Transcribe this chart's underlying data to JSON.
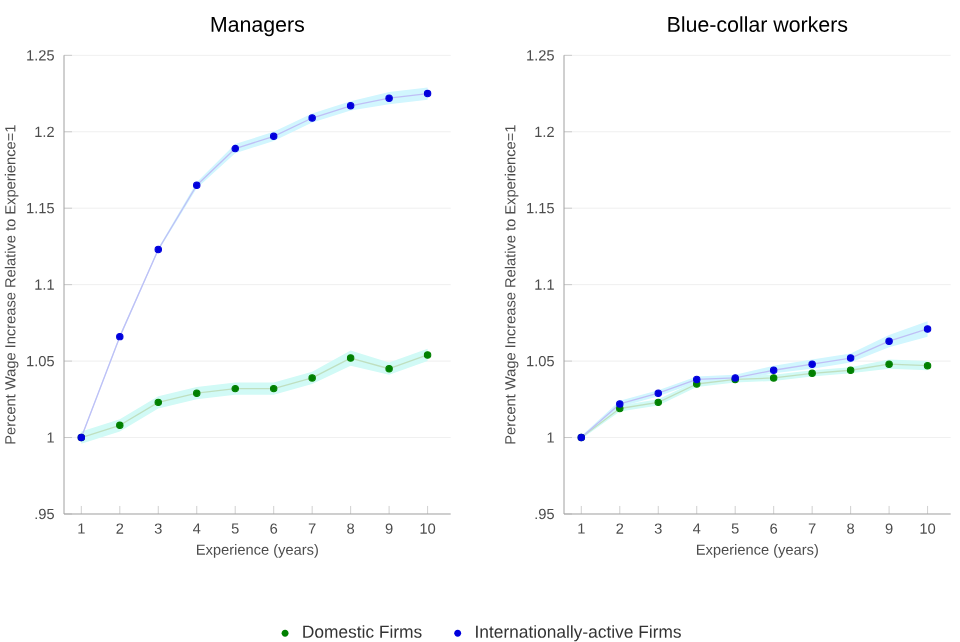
{
  "chart_data": [
    {
      "type": "line",
      "title": "Managers",
      "xlabel": "Experience (years)",
      "ylabel": "Percent Wage Increase Relative to Experience=1",
      "x": [
        1,
        2,
        3,
        4,
        5,
        6,
        7,
        8,
        9,
        10
      ],
      "series": [
        {
          "name": "Domestic Firms",
          "color": "#008000",
          "values": [
            1.0,
            1.008,
            1.023,
            1.029,
            1.032,
            1.032,
            1.039,
            1.052,
            1.045,
            1.054
          ],
          "lower": [
            0.996,
            1.004,
            1.019,
            1.025,
            1.028,
            1.028,
            1.035,
            1.047,
            1.041,
            1.05
          ],
          "upper": [
            1.004,
            1.012,
            1.027,
            1.033,
            1.036,
            1.036,
            1.043,
            1.057,
            1.049,
            1.058
          ]
        },
        {
          "name": "Internationally-active Firms",
          "color": "#0000dd",
          "values": [
            1.0,
            1.066,
            1.123,
            1.165,
            1.189,
            1.197,
            1.209,
            1.217,
            1.222,
            1.225
          ],
          "lower": [
            0.999,
            1.065,
            1.122,
            1.163,
            1.186,
            1.194,
            1.206,
            1.214,
            1.218,
            1.221
          ],
          "upper": [
            1.001,
            1.067,
            1.124,
            1.167,
            1.192,
            1.2,
            1.212,
            1.22,
            1.226,
            1.229
          ]
        }
      ],
      "xlim": [
        0.55,
        10.6
      ],
      "ylim": [
        0.95,
        1.25
      ],
      "xticks": [
        1,
        2,
        3,
        4,
        5,
        6,
        7,
        8,
        9,
        10
      ],
      "yticks": [
        {
          "value": 0.95,
          "label": ".95"
        },
        1,
        1.05,
        1.1,
        1.15,
        1.2,
        1.25
      ],
      "marker": "circle",
      "grid": "y",
      "legend": "bottom"
    },
    {
      "type": "line",
      "title": "Blue-collar workers",
      "xlabel": "Experience (years)",
      "ylabel": "Percent Wage Increase Relative to Experience=1",
      "x": [
        1,
        2,
        3,
        4,
        5,
        6,
        7,
        8,
        9,
        10
      ],
      "series": [
        {
          "color": "#008000",
          "values": [
            1.0,
            1.019,
            1.023,
            1.035,
            1.038,
            1.039,
            1.042,
            1.044,
            1.048,
            1.047
          ],
          "lower": [
            0.999,
            1.017,
            1.021,
            1.033,
            1.036,
            1.037,
            1.04,
            1.042,
            1.045,
            1.044
          ],
          "upper": [
            1.001,
            1.021,
            1.025,
            1.037,
            1.04,
            1.041,
            1.044,
            1.046,
            1.051,
            1.05
          ]
        },
        {
          "color": "#0000dd",
          "values": [
            1.0,
            1.022,
            1.029,
            1.038,
            1.039,
            1.044,
            1.048,
            1.052,
            1.063,
            1.071
          ],
          "lower": [
            0.999,
            1.02,
            1.027,
            1.036,
            1.037,
            1.042,
            1.045,
            1.049,
            1.059,
            1.066
          ],
          "upper": [
            1.001,
            1.024,
            1.031,
            1.04,
            1.041,
            1.047,
            1.051,
            1.055,
            1.067,
            1.076
          ]
        }
      ],
      "xlim": [
        0.55,
        10.6
      ],
      "ylim": [
        0.95,
        1.25
      ],
      "xticks": [
        1,
        2,
        3,
        4,
        5,
        6,
        7,
        8,
        9,
        10
      ],
      "yticks": [
        {
          "value": 0.95,
          "label": ".95"
        },
        1,
        1.05,
        1.1,
        1.15,
        1.2,
        1.25
      ],
      "marker": "circle",
      "grid": "y"
    }
  ]
}
